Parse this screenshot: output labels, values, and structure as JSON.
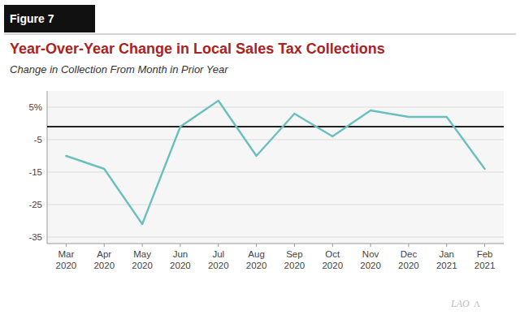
{
  "chart_data": {
    "type": "line",
    "title": "Year-Over-Year Change in Local Sales Tax Collections",
    "subtitle": "Change in Collection From Month in Prior Year",
    "annotations": [
      "Figure 7",
      "LAO",
      "Λ"
    ],
    "categories": [
      "Mar\n2020",
      "Apr\n2020",
      "May\n2020",
      "Jun\n2020",
      "Jul\n2020",
      "Aug\n2020",
      "Sep\n2020",
      "Oct\n2020",
      "Nov\n2020",
      "Dec\n2020",
      "Jan\n2021",
      "Feb\n2021"
    ],
    "values": [
      -10,
      -14,
      -31,
      -1,
      7,
      -10,
      3,
      -4,
      4,
      2,
      2,
      -14
    ],
    "color": "#6bbfbf",
    "reference_line": -1,
    "ylim": [
      -37,
      10
    ],
    "yticks": [
      {
        "value": 5,
        "label": "5%"
      },
      -5,
      -15,
      -25,
      -35
    ],
    "grid": true
  }
}
